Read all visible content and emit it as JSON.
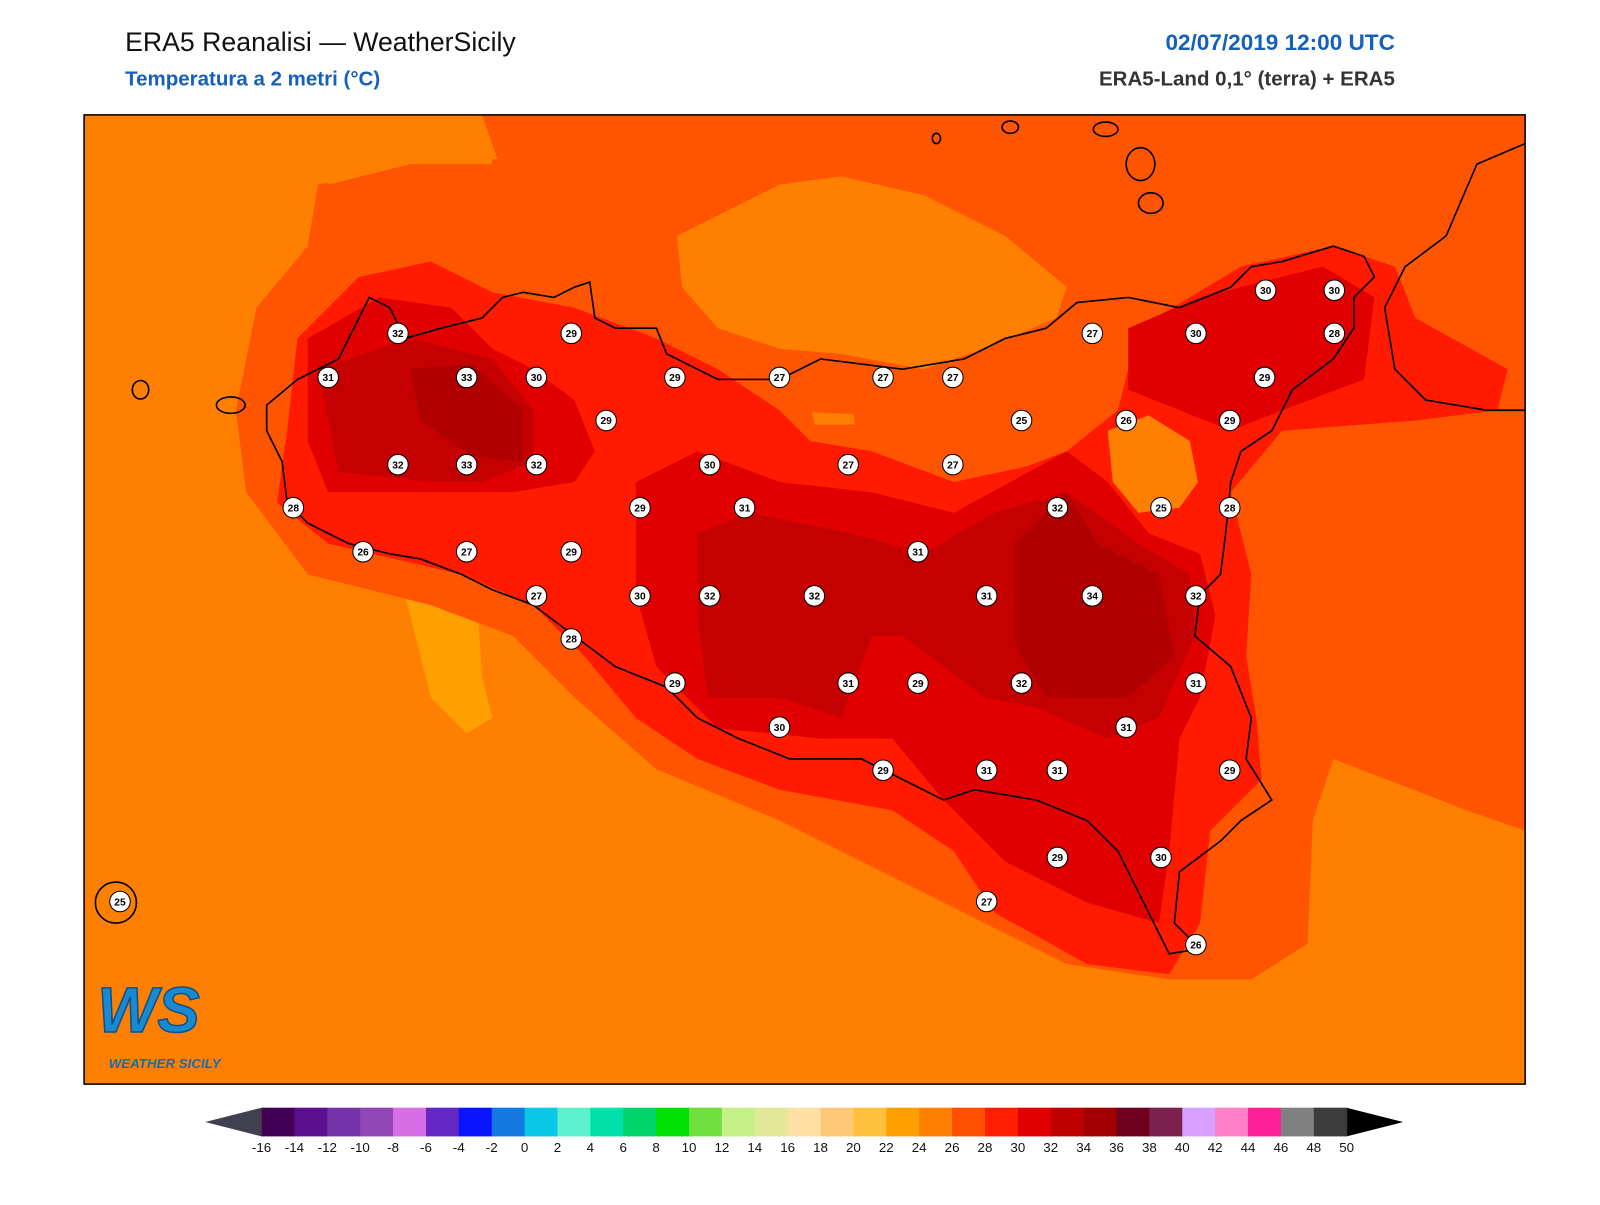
{
  "header": {
    "title": "ERA5 Reanalisi — WeatherSicily",
    "subtitle": "Temperatura a 2 metri (°C)",
    "date": "02/07/2019 12:00 UTC",
    "source": "ERA5-Land 0,1° (terra) + ERA5"
  },
  "stations": [
    30,
    30,
    32,
    29,
    27,
    30,
    28,
    31,
    33,
    30,
    29,
    27,
    27,
    27,
    29,
    29,
    25,
    26,
    29,
    32,
    33,
    32,
    30,
    27,
    27,
    28,
    29,
    31,
    32,
    25,
    28,
    26,
    27,
    29,
    31,
    27,
    30,
    32,
    32,
    31,
    34,
    32,
    28,
    29,
    31,
    29,
    32,
    31,
    30,
    31,
    29,
    31,
    31,
    29,
    29,
    30,
    27,
    26,
    25
  ],
  "colorbar": {
    "ticks": [
      -16,
      -14,
      -12,
      -10,
      -8,
      -6,
      -4,
      -2,
      0,
      2,
      4,
      6,
      8,
      10,
      12,
      14,
      16,
      18,
      20,
      22,
      24,
      26,
      28,
      30,
      32,
      34,
      36,
      38,
      40,
      42,
      44,
      46,
      48,
      50
    ],
    "colors": [
      "#420055",
      "#5c1090",
      "#7433a8",
      "#9146b8",
      "#d86ee6",
      "#6428c4",
      "#0a14ff",
      "#1478e0",
      "#08c8e6",
      "#5cf0cc",
      "#00e0a8",
      "#00d46c",
      "#00e000",
      "#70e040",
      "#c4f088",
      "#e2e898",
      "#ffe0a4",
      "#ffc878",
      "#ffc03c",
      "#ffa000",
      "#ff8000",
      "#ff5000",
      "#ff1e00",
      "#e00000",
      "#c00000",
      "#a00000",
      "#700020",
      "#7c2050",
      "#d8a0ff",
      "#ff80c8",
      "#ff2098",
      "#808080",
      "#3c3c3c"
    ],
    "under_color": "#404050",
    "over_color": "#000000"
  },
  "logo": {
    "mark": "WS",
    "text": "WEATHER SICILY"
  }
}
